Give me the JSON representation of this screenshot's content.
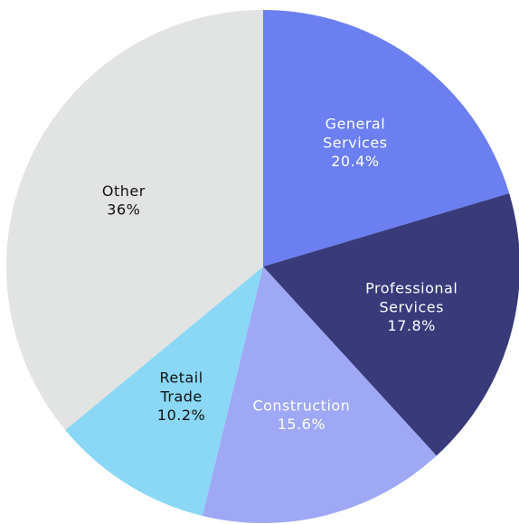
{
  "chart_data": {
    "type": "pie",
    "categories": [
      "General Services",
      "Professional Services",
      "Construction",
      "Retail Trade",
      "Other"
    ],
    "values": [
      20.4,
      17.8,
      15.6,
      10.2,
      36
    ],
    "value_labels": [
      "20.4%",
      "17.8%",
      "15.6%",
      "10.2%",
      "36%"
    ],
    "colors": [
      "#6b7ff0",
      "#383a7a",
      "#9ea8f5",
      "#8ad8f5",
      "#e1e4e3"
    ],
    "start_angle": 0,
    "direction": "clockwise"
  }
}
